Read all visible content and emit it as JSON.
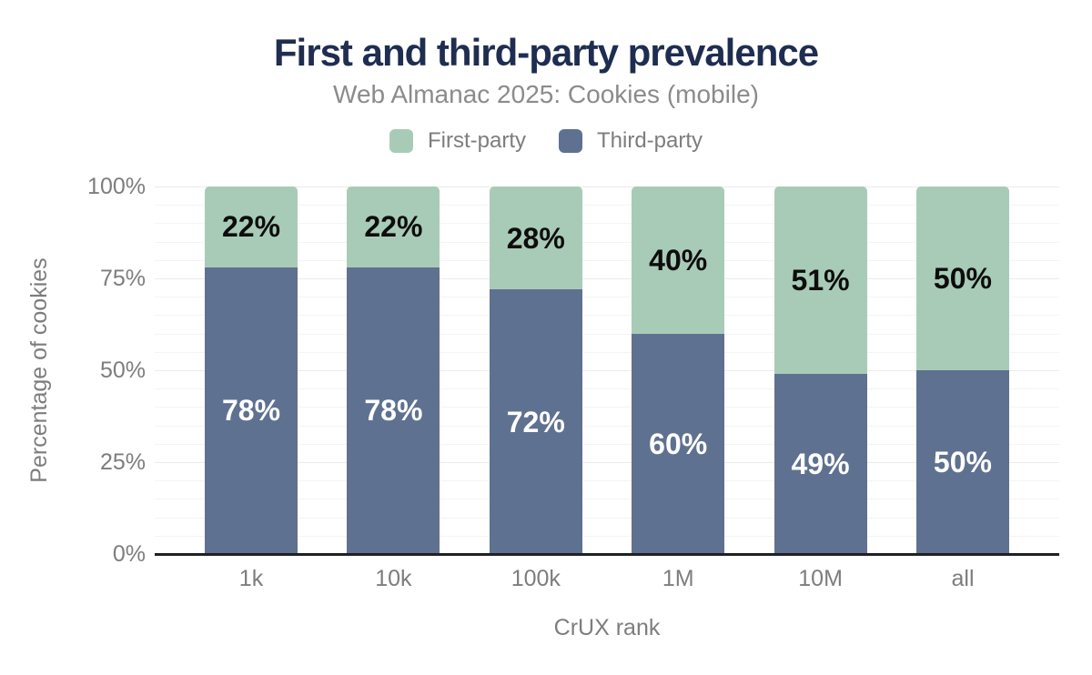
{
  "title": "First and third-party prevalence",
  "subtitle": "Web Almanac 2025: Cookies (mobile)",
  "legend": {
    "items": [
      {
        "label": "First-party",
        "color": "#a8cbb7"
      },
      {
        "label": "Third-party",
        "color": "#5f7190"
      }
    ]
  },
  "chart_data": {
    "type": "bar",
    "stacked": true,
    "title": "First and third-party prevalence",
    "subtitle": "Web Almanac 2025: Cookies (mobile)",
    "categories": [
      "1k",
      "10k",
      "100k",
      "1M",
      "10M",
      "all"
    ],
    "series": [
      {
        "name": "First-party",
        "color": "#a8cbb7",
        "label_color": "#0d0d0d",
        "values": [
          22,
          22,
          28,
          40,
          51,
          50
        ]
      },
      {
        "name": "Third-party",
        "color": "#5f7190",
        "label_color": "#ffffff",
        "values": [
          78,
          78,
          72,
          60,
          49,
          50
        ]
      }
    ],
    "data_labels": {
      "First-party": [
        "22%",
        "22%",
        "28%",
        "40%",
        "51%",
        "50%"
      ],
      "Third-party": [
        "78%",
        "78%",
        "72%",
        "60%",
        "49%",
        "50%"
      ]
    },
    "xlabel": "CrUX rank",
    "ylabel": "Percentage of cookies",
    "yticks": [
      "0%",
      "25%",
      "50%",
      "75%",
      "100%"
    ],
    "ytick_values": [
      0,
      25,
      50,
      75,
      100
    ],
    "ylim": [
      0,
      100
    ],
    "grid": {
      "minor_step": 5,
      "major_step": 25
    },
    "legend_position": "top"
  },
  "colors": {
    "title": "#1e2d50",
    "subtitle": "#8b8b8b",
    "axis_text": "#7d7d7d",
    "baseline": "#202124",
    "grid_minor": "#f4f4f4",
    "grid_major": "#ebebeb",
    "background": "#ffffff"
  }
}
